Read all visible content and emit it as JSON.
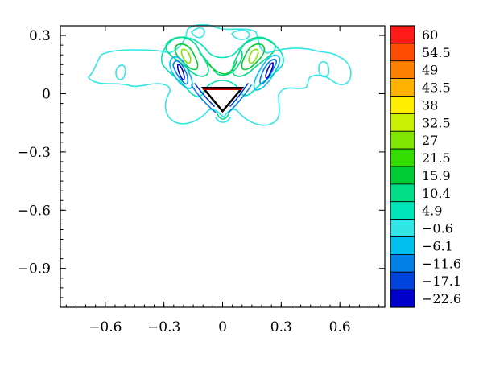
{
  "chart_data": {
    "type": "contour",
    "title": "",
    "xlabel": "",
    "ylabel": "",
    "xlim": [
      -0.83,
      0.83
    ],
    "ylim": [
      -1.1,
      0.35
    ],
    "x_ticks": [
      -0.6,
      -0.3,
      0,
      0.3,
      0.6
    ],
    "x_tick_labels": [
      "−0.6",
      "−0.3",
      "0",
      "0.3",
      "0.6"
    ],
    "y_ticks": [
      0.3,
      0,
      -0.3,
      -0.6,
      -0.9
    ],
    "y_tick_labels": [
      "0.3",
      "0",
      "−0.3",
      "−0.6",
      "−0.9"
    ],
    "colorbar": {
      "levels": [
        "60",
        "54.5",
        "49",
        "43.5",
        "38",
        "32.5",
        "27",
        "21.5",
        "15.9",
        "10.4",
        "4.9",
        "−0.6",
        "−6.1",
        "−11.6",
        "−17.1",
        "−22.6"
      ],
      "colors": [
        "#ff1a1a",
        "#ff4d00",
        "#ff8000",
        "#ffb300",
        "#ffee00",
        "#c8f000",
        "#80e600",
        "#33dd00",
        "#00cc33",
        "#00dd88",
        "#00e6b8",
        "#33e6e6",
        "#00c0f0",
        "#0080e6",
        "#0044dd",
        "#0000cc"
      ]
    },
    "body": {
      "vertices": [
        [
          -0.1,
          0.03
        ],
        [
          0.1,
          0.03
        ],
        [
          0,
          -0.09
        ]
      ],
      "outline_color": "#000000",
      "edge_color": "#cc0000"
    }
  }
}
